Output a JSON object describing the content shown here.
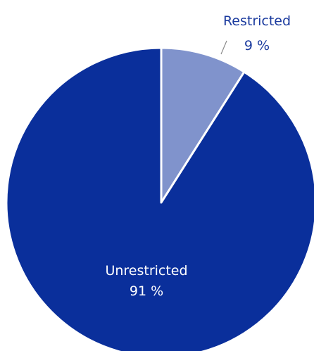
{
  "chart_data": {
    "type": "pie",
    "slices": [
      {
        "label": "Restricted",
        "value": 9,
        "value_text": "9 %",
        "color": "#8093cc"
      },
      {
        "label": "Unrestricted",
        "value": 91,
        "value_text": "91 %",
        "color": "#0a2f9b"
      }
    ],
    "start_angle": "12 o'clock",
    "direction": "clockwise",
    "label_colors": {
      "outside": "#1a3a9e",
      "inside": "#ffffff"
    },
    "edge_color": "#ffffff"
  }
}
